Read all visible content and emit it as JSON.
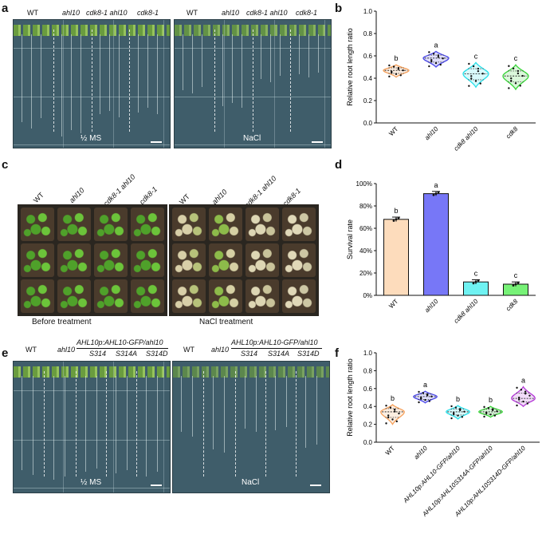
{
  "panels": {
    "a": {
      "label": "a",
      "left_headers": [
        "WT",
        "ahl10",
        "cdk8-1 ahl10",
        "cdk8-1"
      ],
      "right_headers": [
        "WT",
        "ahl10",
        "cdk8-1 ahl10",
        "cdk8-1"
      ],
      "left_condition": "½ MS",
      "right_condition": "NaCl"
    },
    "c": {
      "label": "c",
      "left_headers": [
        "WT",
        "ahl10",
        "cdk8-1 ahl10",
        "cdk8-1"
      ],
      "right_headers": [
        "WT",
        "ahl10",
        "cdk8-1 ahl10",
        "cdk8-1"
      ],
      "left_caption": "Before treatment",
      "right_caption": "NaCl treatment"
    },
    "e": {
      "label": "e",
      "construct": "AHL10p:AHL10-GFP/ahl10",
      "left_headers": [
        "WT",
        "ahl10",
        "S314",
        "S314A",
        "S314D"
      ],
      "right_headers": [
        "WT",
        "ahl10",
        "S314",
        "S314A",
        "S314D"
      ],
      "left_condition": "½ MS",
      "right_condition": "NaCl"
    }
  },
  "chart_data": [
    {
      "panel": "b",
      "type": "violin",
      "ylabel": "Relative root length ratio",
      "ylim": [
        0.0,
        1.0
      ],
      "yticks": [
        "0.0",
        "0.2",
        "0.4",
        "0.6",
        "0.8",
        "1.0"
      ],
      "categories": [
        "WT",
        "ahl10",
        "cdk8 ahl10",
        "cdk8"
      ],
      "medians": [
        0.47,
        0.58,
        0.44,
        0.42
      ],
      "ranges": [
        [
          0.41,
          0.52
        ],
        [
          0.5,
          0.64
        ],
        [
          0.32,
          0.54
        ],
        [
          0.3,
          0.52
        ]
      ],
      "letters": [
        "b",
        "a",
        "c",
        "c"
      ],
      "colors": [
        "#f6a05a",
        "#4b48e8",
        "#28e0ea",
        "#3ad53a"
      ]
    },
    {
      "panel": "d",
      "type": "bar",
      "ylabel": "Survival rate",
      "ylim": [
        0,
        100
      ],
      "yticks": [
        "0%",
        "20%",
        "40%",
        "60%",
        "80%",
        "100%"
      ],
      "categories": [
        "WT",
        "ahl10",
        "cdk8 ahl10",
        "cdk8"
      ],
      "values": [
        68,
        91,
        12,
        10
      ],
      "errors": [
        2,
        2,
        2,
        2
      ],
      "letters": [
        "b",
        "a",
        "c",
        "c"
      ],
      "colors": [
        "#fddcbc",
        "#7777f7",
        "#6ff2f2",
        "#77f277"
      ]
    },
    {
      "panel": "f",
      "type": "violin",
      "ylabel": "Relative root length ratio",
      "ylim": [
        0.0,
        1.0
      ],
      "yticks": [
        "0.0",
        "0.2",
        "0.4",
        "0.6",
        "0.8",
        "1.0"
      ],
      "categories": [
        "WT",
        "ahl10",
        "AHL10p:AHL10-GFP/ahl10",
        "AHL10p:AHL10S314A-GFP/ahl10",
        "AHL10p:AHL10S314D-GFP/ahl10"
      ],
      "medians": [
        0.34,
        0.51,
        0.34,
        0.34,
        0.49
      ],
      "ranges": [
        [
          0.2,
          0.42
        ],
        [
          0.44,
          0.57
        ],
        [
          0.26,
          0.41
        ],
        [
          0.28,
          0.4
        ],
        [
          0.4,
          0.62
        ]
      ],
      "letters": [
        "b",
        "a",
        "b",
        "b",
        "a"
      ],
      "colors": [
        "#f6a05a",
        "#4b48e8",
        "#28e0ea",
        "#3ad53a",
        "#b43ad6"
      ]
    }
  ]
}
